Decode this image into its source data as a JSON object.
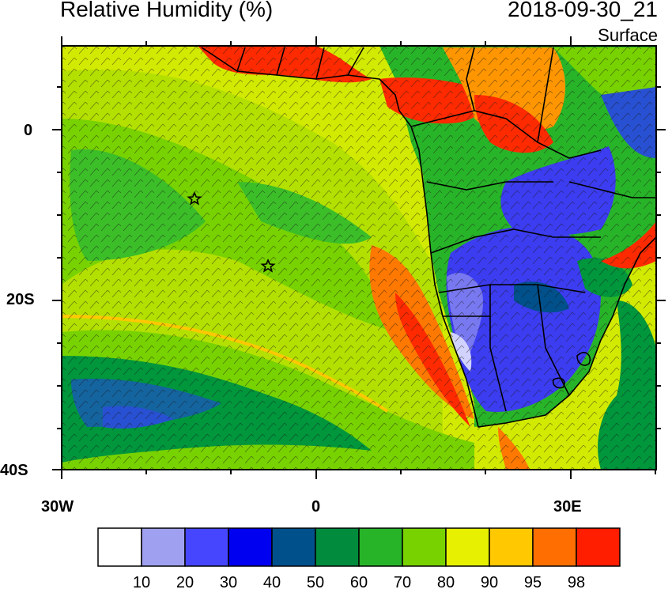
{
  "header": {
    "title": "Relative Humidity (%)",
    "valid_time": "2018-09-30_21",
    "level": "Surface"
  },
  "axes": {
    "lat_labels": [
      "0",
      "20S",
      "40S"
    ],
    "lon_labels": [
      "30W",
      "0",
      "30E"
    ]
  },
  "colorbar": {
    "labels": [
      "10",
      "20",
      "30",
      "40",
      "50",
      "60",
      "70",
      "80",
      "90",
      "95",
      "98"
    ],
    "colors": [
      "#ffffff",
      "#a0a0f0",
      "#4646ff",
      "#0000f0",
      "#00508c",
      "#008c3c",
      "#28b428",
      "#78d200",
      "#e6f000",
      "#ffc800",
      "#ff6e00",
      "#ff1e00"
    ]
  },
  "map": {
    "ocean_base_color": "#c8e600",
    "land_colors": {
      "dry": "#3c3cf0",
      "very_dry": "#9a9af0",
      "moist": "#ff2a00",
      "wet": "#00a03c"
    },
    "station_markers": [
      "star",
      "star"
    ]
  }
}
